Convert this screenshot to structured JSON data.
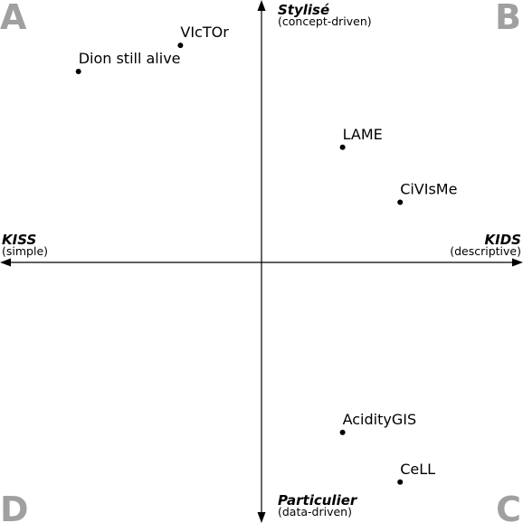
{
  "corners": {
    "top_left": "A",
    "top_right": "B",
    "bottom_right": "C",
    "bottom_left": "D"
  },
  "axes": {
    "top": {
      "title": "Stylisé",
      "subtitle": "(concept-driven)"
    },
    "bottom": {
      "title": "Particulier",
      "subtitle": "(data-driven)"
    },
    "left": {
      "title": "KISS",
      "subtitle": "(simple)"
    },
    "right": {
      "title": "KIDS",
      "subtitle": "(descriptive)"
    }
  },
  "points": [
    {
      "label": "VIcTOr",
      "x": -0.31,
      "y": 0.83
    },
    {
      "label": "Dion still alive",
      "x": -0.7,
      "y": 0.73
    },
    {
      "label": "LAME",
      "x": 0.31,
      "y": 0.44
    },
    {
      "label": "CiVIsMe",
      "x": 0.53,
      "y": 0.23
    },
    {
      "label": "AcidityGIS",
      "x": 0.31,
      "y": -0.65
    },
    {
      "label": "CeLL",
      "x": 0.53,
      "y": -0.84
    }
  ],
  "colors": {
    "corner_letters": "#a0a0a0",
    "axes": "#000000",
    "text": "#000000"
  }
}
